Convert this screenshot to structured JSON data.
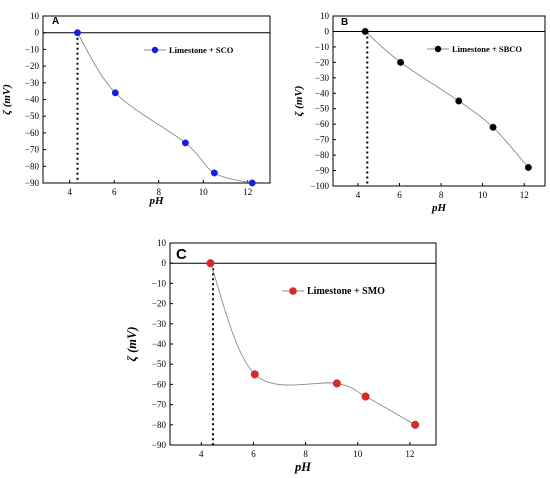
{
  "chart_data": [
    {
      "type": "line",
      "panel_label": "A",
      "xlabel": "pH",
      "ylabel": "ζ (mV)",
      "xlim": [
        2.8,
        13.0
      ],
      "ylim": [
        -90,
        10
      ],
      "xticks": [
        4,
        6,
        8,
        10,
        12
      ],
      "yticks": [
        10,
        0,
        -10,
        -20,
        -30,
        -40,
        -50,
        -60,
        -70,
        -80,
        -90
      ],
      "zero_line": true,
      "iep_dotted_x": 4.35,
      "legend_position": "top-right",
      "series": [
        {
          "name": "Limestone + SCO",
          "color": "#1a1ae6",
          "x": [
            4.35,
            6.05,
            9.2,
            10.5,
            12.2
          ],
          "y": [
            0,
            -36,
            -66,
            -84,
            -90
          ]
        }
      ]
    },
    {
      "type": "line",
      "panel_label": "B",
      "xlabel": "pH",
      "ylabel": "ζ (mV)",
      "xlim": [
        2.8,
        13.0
      ],
      "ylim": [
        -100,
        10
      ],
      "xticks": [
        4,
        6,
        8,
        10,
        12
      ],
      "yticks": [
        10,
        0,
        -10,
        -20,
        -30,
        -40,
        -50,
        -60,
        -70,
        -80,
        -90,
        -100
      ],
      "zero_line": true,
      "iep_dotted_x": 4.45,
      "legend_position": "top-right",
      "series": [
        {
          "name": "Limestone + SBCO",
          "color": "#000000",
          "x": [
            4.35,
            6.05,
            8.85,
            10.5,
            12.2
          ],
          "y": [
            0,
            -20,
            -45,
            -62,
            -88
          ]
        }
      ]
    },
    {
      "type": "line",
      "panel_label": "C",
      "xlabel": "pH",
      "ylabel": "ζ (mV)",
      "xlim": [
        2.8,
        13.0
      ],
      "ylim": [
        -90,
        10
      ],
      "xticks": [
        4,
        6,
        8,
        10,
        12
      ],
      "yticks": [
        10,
        0,
        -10,
        -20,
        -30,
        -40,
        -50,
        -60,
        -70,
        -80,
        -90
      ],
      "zero_line": true,
      "iep_dotted_x": 4.45,
      "legend_position": "top-right",
      "series": [
        {
          "name": "Limestone + SMO",
          "color": "#d42a2a",
          "x": [
            4.35,
            6.05,
            9.2,
            10.3,
            12.2
          ],
          "y": [
            0,
            -55,
            -59.5,
            -66,
            -80
          ]
        }
      ]
    }
  ]
}
